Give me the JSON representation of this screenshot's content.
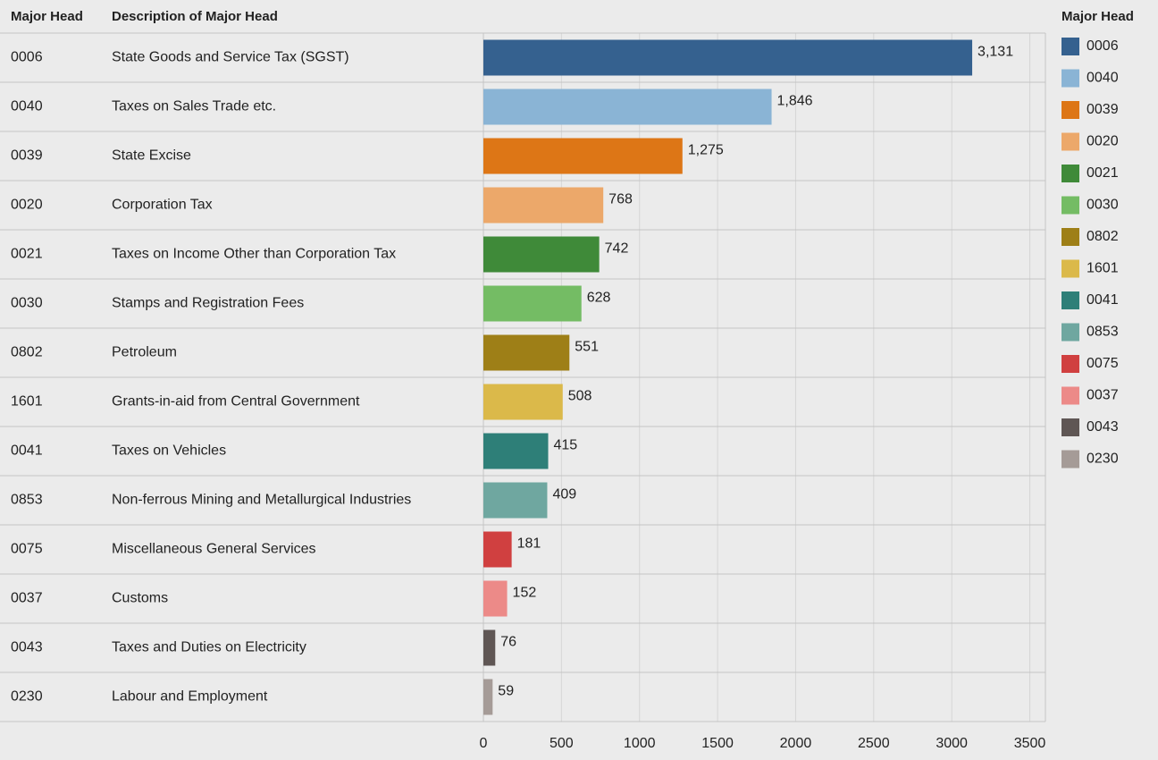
{
  "chart_data": {
    "type": "bar",
    "column_headers": [
      "Major Head",
      "Description  of Major Head"
    ],
    "legend_title": "Major Head",
    "categories": [
      "0006",
      "0040",
      "0039",
      "0020",
      "0021",
      "0030",
      "0802",
      "1601",
      "0041",
      "0853",
      "0075",
      "0037",
      "0043",
      "0230"
    ],
    "descriptions": [
      "State Goods and Service Tax (SGST)",
      "Taxes on Sales Trade etc.",
      "State Excise",
      "Corporation Tax",
      "Taxes on Income Other than Corporation Tax",
      "Stamps and Registration Fees",
      "Petroleum",
      "Grants-in-aid from Central Government",
      "Taxes on Vehicles",
      "Non-ferrous Mining and Metallurgical Industries",
      "Miscellaneous General Services",
      "Customs",
      "Taxes and Duties on Electricity",
      "Labour and Employment"
    ],
    "values": [
      3131,
      1846,
      1275,
      768,
      742,
      628,
      551,
      508,
      415,
      409,
      181,
      152,
      76,
      59
    ],
    "value_labels": [
      "3,131",
      "1,846",
      "1,275",
      "768",
      "742",
      "628",
      "551",
      "508",
      "415",
      "409",
      "181",
      "152",
      "76",
      "59"
    ],
    "colors": [
      "#35618f",
      "#8ab4d5",
      "#dd7616",
      "#eca86a",
      "#3f8a39",
      "#74bc64",
      "#9e7f17",
      "#dbb94a",
      "#2e7f78",
      "#6fa7a0",
      "#d04040",
      "#ec8a88",
      "#5f5654",
      "#a59b97"
    ],
    "xlim": [
      0,
      3600
    ],
    "xticks": [
      0,
      500,
      1000,
      1500,
      2000,
      2500,
      3000,
      3500
    ],
    "grid": true
  }
}
